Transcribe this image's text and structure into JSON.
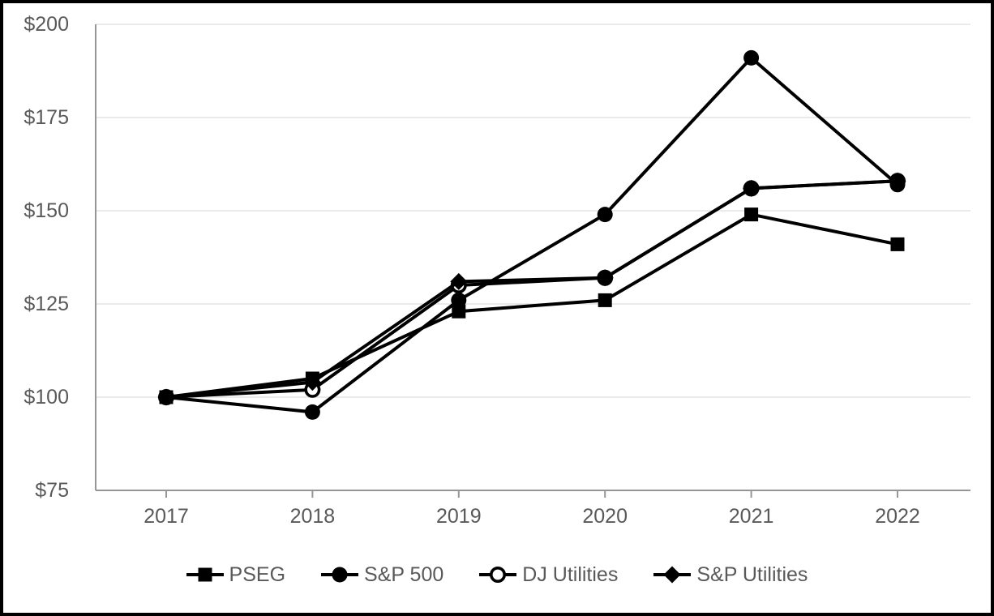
{
  "chart_data": {
    "type": "line",
    "x_labels": [
      "2017",
      "2018",
      "2019",
      "2020",
      "2021",
      "2022"
    ],
    "series": [
      {
        "name": "PSEG",
        "marker": "square-filled",
        "values": [
          100,
          105,
          123,
          126,
          149,
          141
        ]
      },
      {
        "name": "S&P 500",
        "marker": "circle-filled",
        "values": [
          100,
          96,
          126,
          149,
          191,
          157
        ]
      },
      {
        "name": "DJ Utilities",
        "marker": "circle-open",
        "values": [
          100,
          102,
          130,
          132,
          156,
          158
        ]
      },
      {
        "name": "S&P Utilities",
        "marker": "diamond-filled",
        "values": [
          100,
          104,
          131,
          132,
          156,
          158
        ]
      }
    ],
    "yticks": [
      {
        "value": 75,
        "label": "$75"
      },
      {
        "value": 100,
        "label": "$100"
      },
      {
        "value": 125,
        "label": "$125"
      },
      {
        "value": 150,
        "label": "$150"
      },
      {
        "value": 175,
        "label": "$175"
      },
      {
        "value": 200,
        "label": "$200"
      }
    ],
    "ylim": [
      75,
      200
    ],
    "grid": true,
    "legend_position": "bottom",
    "colors": {
      "series": "#000000",
      "axis": "#969696",
      "gridline": "#e4e4e4",
      "tick_label": "#595959",
      "legend_text": "#595959",
      "frame": "#000000",
      "background": "#ffffff"
    }
  }
}
